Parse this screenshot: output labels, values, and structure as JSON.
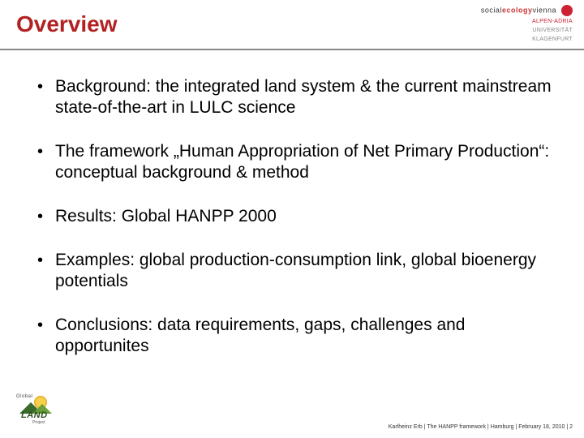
{
  "title": "Overview",
  "header_logo": {
    "line1_prefix": "social",
    "line1_accent": "ecology",
    "line1_suffix": "vienna",
    "line2": "ALPEN-ADRIA",
    "line3a": "UNIVERSITÄT",
    "line3b": "KLAGENFURT"
  },
  "bullets": [
    "Background: the integrated land system & the current mainstream state-of-the-art in LULC science",
    "The framework „Human Appropriation of Net Primary Production“: conceptual background & method",
    "Results: Global HANPP 2000",
    "Examples: global production-consumption link, global bioenergy potentials",
    "Conclusions: data requirements, gaps, challenges and opportunites"
  ],
  "footer_logo": {
    "top": "Global",
    "main": "LAND",
    "sub": "Project"
  },
  "footer_text": "Karlheinz Erb | The HANPP framework | Hamburg | February 18, 2010 | 2",
  "colors": {
    "title": "#b22222",
    "divider": "#888888",
    "accent": "#cc2233",
    "text": "#000000",
    "bg": "#ffffff"
  },
  "typography": {
    "title_fontsize": 28,
    "body_fontsize": 21,
    "footer_fontsize": 7
  }
}
